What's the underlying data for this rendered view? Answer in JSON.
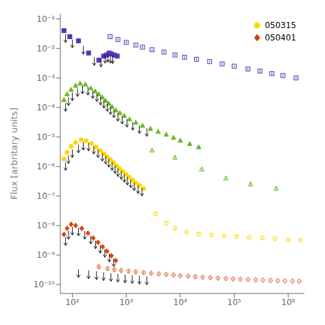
{
  "chart_data": {
    "type": "scatter",
    "ylabel": "Flux [arbritary units]",
    "log": true,
    "grid": false,
    "legend": "upper right",
    "legend_entries": [
      {
        "name": "050315",
        "color": "#FFD700",
        "marker": "circle"
      },
      {
        "name": "050401",
        "color": "#CC4400",
        "marker": "diamond"
      }
    ],
    "xlim": [
      60,
      2000000
    ],
    "xticks": [
      {
        "value": 100,
        "label": "10²"
      },
      {
        "value": 1000,
        "label": "10³"
      },
      {
        "value": 10000,
        "label": "10⁴"
      },
      {
        "value": 100000,
        "label": "10⁵"
      },
      {
        "value": 1000000,
        "label": "10⁶"
      }
    ],
    "ylim": [
      5e-11,
      0.15
    ],
    "yticks": [
      {
        "value": 1e-10,
        "label": "10⁻¹⁰"
      },
      {
        "value": 1e-09,
        "label": "10⁻⁹"
      },
      {
        "value": 1e-08,
        "label": "10⁻⁸"
      },
      {
        "value": 1e-07,
        "label": "10⁻⁷"
      },
      {
        "value": 1e-06,
        "label": "10⁻⁶"
      },
      {
        "value": 1e-05,
        "label": "10⁻⁵"
      },
      {
        "value": 0.0001,
        "label": "10⁻⁴"
      },
      {
        "value": 0.001,
        "label": "10⁻³"
      },
      {
        "value": 0.01,
        "label": "10⁻²"
      },
      {
        "value": 0.1,
        "label": "10⁻¹"
      }
    ],
    "series": [
      {
        "color": "#DD4411",
        "marker": "diamond-open",
        "x": [
          310,
          450,
          600,
          800,
          1100,
          1500,
          2100,
          2900,
          4000,
          5500,
          7500,
          10000,
          14000,
          19000,
          26000,
          36000,
          50000,
          70000,
          95000,
          130000,
          180000,
          250000,
          340000,
          470000,
          640000,
          870000,
          1200000,
          1600000
        ],
        "values": [
          4e-10,
          3.5e-10,
          3.2e-10,
          3e-10,
          2.85e-10,
          2.7e-10,
          2.55e-10,
          2.42e-10,
          2.3e-10,
          2.2e-10,
          2.1e-10,
          2e-10,
          1.92e-10,
          1.85e-10,
          1.78e-10,
          1.72e-10,
          1.66e-10,
          1.61e-10,
          1.56e-10,
          1.52e-10,
          1.48e-10,
          1.44e-10,
          1.41e-10,
          1.38e-10,
          1.35e-10,
          1.33e-10,
          1.3e-10,
          1.28e-10
        ],
        "yerr_lo": [
          5e-11,
          4e-11,
          3.5e-11,
          3e-11,
          2.8e-11,
          2.5e-11,
          2.3e-11,
          2.1e-11,
          2e-11,
          1.8e-11,
          1.7e-11,
          1.6e-11,
          1.5e-11,
          1.4e-11,
          1.3e-11,
          1.2e-11,
          1.1e-11,
          1e-11,
          9e-12,
          8e-12,
          7e-12,
          6e-12,
          6e-12,
          5e-12,
          5e-12,
          4e-12,
          4e-12,
          4e-12
        ],
        "yerr_hi": [
          5e-11,
          4e-11,
          3.5e-11,
          3e-11,
          2.8e-11,
          2.5e-11,
          2.3e-11,
          2.1e-11,
          2e-11,
          1.8e-11,
          1.7e-11,
          1.6e-11,
          1.5e-11,
          1.4e-11,
          1.3e-11,
          1.2e-11,
          1.1e-11,
          1e-11,
          9e-12,
          8e-12,
          7e-12,
          6e-12,
          6e-12,
          5e-12,
          5e-12,
          4e-12,
          4e-12,
          4e-12
        ],
        "upper_limits_x": [
          130,
          200,
          280,
          380,
          520,
          700,
          950,
          1290,
          1750,
          2400
        ],
        "upper_limits_y": [
          3.3e-10,
          3e-10,
          2.8e-10,
          2.6e-10,
          2.45e-10,
          2.3e-10,
          2.18e-10,
          2.07e-10,
          1.97e-10,
          1.88e-10
        ]
      },
      {
        "color": "#FFD700",
        "marker": "circle-open",
        "x": [
          3500,
          5500,
          8000,
          13000,
          22000,
          38000,
          65000,
          110000,
          190000,
          330000,
          570000,
          1000000,
          1700000
        ],
        "values": [
          2.5e-08,
          1.2e-08,
          8e-09,
          6e-09,
          5.2e-09,
          4.8e-09,
          4.5e-09,
          4.2e-09,
          4e-09,
          3.8e-09,
          3.6e-09,
          3.3e-09,
          3.2e-09
        ],
        "yerr_lo": [
          4e-09,
          2e-09,
          1.2e-09,
          9e-10,
          7e-10,
          6e-10,
          5.5e-10,
          5e-10,
          4.5e-10,
          4.5e-10,
          4e-10,
          4e-10,
          3.5e-10
        ],
        "yerr_hi": [
          4e-09,
          2e-09,
          1.2e-09,
          9e-10,
          7e-10,
          6e-10,
          5.5e-10,
          5e-10,
          4.5e-10,
          4.5e-10,
          4e-10,
          4e-10,
          3.5e-10
        ]
      },
      {
        "color": "#66BB22",
        "marker": "triangle-open",
        "x": [
          3000,
          8000,
          25000,
          70000,
          200000,
          600000
        ],
        "values": [
          3.5e-06,
          2e-06,
          8e-07,
          4e-07,
          2.5e-07,
          1.8e-07
        ],
        "yerr_lo": [
          5e-07,
          3e-07,
          1.2e-07,
          6e-08,
          4e-08,
          3e-08
        ],
        "yerr_hi": [
          5e-07,
          3e-07,
          1.2e-07,
          6e-08,
          4e-08,
          3e-08
        ]
      },
      {
        "color": "#5533BB",
        "marker": "square-open",
        "x": [
          500,
          700,
          1000,
          1500,
          2000,
          3000,
          5000,
          8000,
          12000,
          20000,
          35000,
          60000,
          100000,
          180000,
          300000,
          500000,
          800000,
          1400000
        ],
        "values": [
          0.025,
          0.02,
          0.016,
          0.013,
          0.011,
          0.009,
          0.0075,
          0.006,
          0.005,
          0.0043,
          0.0036,
          0.003,
          0.0025,
          0.002,
          0.0017,
          0.0014,
          0.0012,
          0.001
        ],
        "yerr_lo": [
          0.002,
          0.002,
          0.0015,
          0.001,
          0.001,
          0.0008,
          0.0007,
          0.0006,
          0.0005,
          0.0004,
          0.0003,
          0.0003,
          0.0002,
          0.0002,
          0.0002,
          0.00015,
          0.00012,
          0.0001
        ],
        "yerr_hi": [
          0.002,
          0.002,
          0.0015,
          0.001,
          0.001,
          0.0008,
          0.0007,
          0.0006,
          0.0005,
          0.0004,
          0.0003,
          0.0003,
          0.0002,
          0.0002,
          0.0002,
          0.00015,
          0.00012,
          0.0001
        ]
      },
      {
        "color": "#DD4411",
        "marker": "diamond",
        "x": [
          70,
          80,
          95,
          115,
          150,
          195,
          245,
          300,
          365,
          440,
          530,
          640
        ],
        "values": [
          5e-09,
          8e-09,
          1.1e-08,
          1e-08,
          8e-09,
          5.5e-09,
          3.8e-09,
          2.7e-09,
          1.9e-09,
          1.35e-09,
          9.5e-10,
          6.5e-10
        ],
        "yerr_lo": [
          8e-10,
          1.2e-09,
          1.6e-09,
          1.5e-09,
          1.2e-09,
          8e-10,
          5.5e-10,
          4e-10,
          2.8e-10,
          2e-10,
          1.4e-10,
          1e-10
        ],
        "yerr_hi": [
          8e-10,
          1.2e-09,
          1.6e-09,
          1.5e-09,
          1.2e-09,
          8e-10,
          5.5e-10,
          4e-10,
          2.8e-10,
          2e-10,
          1.4e-10,
          1e-10
        ],
        "upper_limits_x": [
          75,
          85,
          100,
          130,
          170,
          220,
          270,
          330,
          400,
          485,
          585
        ],
        "upper_limits_y": [
          4e-09,
          6.5e-09,
          9e-09,
          8.5e-09,
          6.5e-09,
          4.5e-09,
          3.1e-09,
          2.2e-09,
          1.6e-09,
          1.1e-09,
          7.8e-10
        ]
      },
      {
        "color": "#FFD700",
        "marker": "circle",
        "x": [
          70,
          80,
          95,
          115,
          145,
          180,
          225,
          275,
          330,
          385,
          445,
          510,
          580,
          660,
          750,
          860,
          980,
          1120,
          1300,
          1500,
          1750,
          2100
        ],
        "values": [
          1.8e-06,
          3e-06,
          4.8e-06,
          6.5e-06,
          8e-06,
          7.5e-06,
          6e-06,
          4.5e-06,
          3.5e-06,
          2.7e-06,
          2.1e-06,
          1.7e-06,
          1.35e-06,
          1.05e-06,
          8.5e-07,
          6.8e-07,
          5.5e-07,
          4.4e-07,
          3.5e-07,
          2.8e-07,
          2.3e-07,
          1.8e-07
        ],
        "yerr_lo": [
          3e-07,
          5e-07,
          8e-07,
          1e-06,
          1.2e-06,
          1.1e-06,
          9e-07,
          7e-07,
          5.5e-07,
          4.5e-07,
          3.5e-07,
          2.8e-07,
          2.2e-07,
          1.7e-07,
          1.4e-07,
          1.1e-07,
          9e-08,
          7e-08,
          5.5e-08,
          4.5e-08,
          3.5e-08,
          2.8e-08
        ],
        "yerr_hi": [
          3e-07,
          5e-07,
          8e-07,
          1e-06,
          1.2e-06,
          1.1e-06,
          9e-07,
          7e-07,
          5.5e-07,
          4.5e-07,
          3.5e-07,
          2.8e-07,
          2.2e-07,
          1.7e-07,
          1.4e-07,
          1.1e-07,
          9e-08,
          7e-08,
          5.5e-08,
          4.5e-08,
          3.5e-08,
          2.8e-08
        ],
        "upper_limits_x": [
          75,
          85,
          100,
          130,
          160,
          200,
          250,
          300,
          360,
          415,
          475,
          545,
          620,
          700,
          805,
          920,
          1050,
          1210,
          1400,
          1650,
          1950
        ],
        "upper_limits_y": [
          1.4e-06,
          2.4e-06,
          3.8e-06,
          5.5e-06,
          6.8e-06,
          6.4e-06,
          5e-06,
          3.8e-06,
          2.9e-06,
          2.3e-06,
          1.8e-06,
          1.4e-06,
          1.1e-06,
          8.7e-07,
          7e-07,
          5.6e-07,
          4.5e-07,
          3.6e-07,
          2.9e-07,
          2.3e-07,
          1.9e-07
        ]
      },
      {
        "color": "#66BB22",
        "marker": "triangle",
        "x": [
          70,
          80,
          95,
          115,
          140,
          175,
          220,
          265,
          310,
          360,
          415,
          475,
          545,
          640,
          760,
          920,
          1150,
          1500,
          2000,
          2800,
          3900,
          5500,
          7500,
          10000,
          15000,
          22000
        ],
        "values": [
          0.00018,
          0.00028,
          0.0004,
          0.00055,
          0.00065,
          0.0006,
          0.00045,
          0.00035,
          0.00028,
          0.00022,
          0.00017,
          0.000135,
          0.000105,
          8e-05,
          6.5e-05,
          5.2e-05,
          4e-05,
          3.1e-05,
          2.4e-05,
          1.9e-05,
          1.5e-05,
          1.2e-05,
          9.5e-06,
          7.5e-06,
          5.8e-06,
          4.5e-06
        ],
        "yerr_lo": [
          2e-05,
          3e-05,
          4e-05,
          5e-05,
          6e-05,
          5e-05,
          4e-05,
          3e-05,
          2.5e-05,
          2e-05,
          1.5e-05,
          1.2e-05,
          9e-06,
          7e-06,
          5.5e-06,
          4.5e-06,
          3.5e-06,
          2.7e-06,
          2e-06,
          1.6e-06,
          1.3e-06,
          1e-06,
          8e-07,
          6.5e-07,
          5e-07,
          4e-07
        ],
        "yerr_hi": [
          2e-05,
          3e-05,
          4e-05,
          5e-05,
          6e-05,
          5e-05,
          4e-05,
          3e-05,
          2.5e-05,
          2e-05,
          1.5e-05,
          1.2e-05,
          9e-06,
          7e-06,
          5.5e-06,
          4.5e-06,
          3.5e-06,
          2.7e-06,
          2e-06,
          1.6e-06,
          1.3e-06,
          1e-06,
          8e-07,
          6.5e-07,
          5e-07,
          4e-07
        ],
        "upper_limits_x": [
          75,
          85,
          100,
          125,
          155,
          195,
          240,
          285,
          335,
          385,
          445,
          510,
          590,
          700,
          840,
          1030,
          1320,
          1750,
          2400
        ],
        "upper_limits_y": [
          0.00014,
          0.00022,
          0.00032,
          0.00045,
          0.00055,
          0.0005,
          0.00038,
          0.0003,
          0.00023,
          0.00018,
          0.00014,
          0.00011,
          8.5e-05,
          6.5e-05,
          5.2e-05,
          4.1e-05,
          3.2e-05,
          2.5e-05,
          2e-05
        ]
      },
      {
        "color": "#5533BB",
        "marker": "square",
        "x": [
          70,
          90,
          130,
          200,
          310,
          380,
          430,
          480,
          530,
          600,
          680
        ],
        "values": [
          0.04,
          0.025,
          0.018,
          0.007,
          0.004,
          0.0055,
          0.006,
          0.007,
          0.0065,
          0.006,
          0.0055
        ],
        "yerr_lo": [
          0.006,
          0.004,
          0.003,
          0.001,
          0.0007,
          0.001,
          0.001,
          0.001,
          0.001,
          0.001,
          0.001
        ],
        "yerr_hi": [
          0.006,
          0.004,
          0.003,
          0.001,
          0.0007,
          0.001,
          0.001,
          0.001,
          0.001,
          0.001,
          0.001
        ],
        "upper_limits_x": [
          75,
          100,
          160,
          255,
          340,
          405,
          455,
          510,
          560
        ],
        "upper_limits_y": [
          0.03,
          0.02,
          0.012,
          0.005,
          0.0045,
          0.006,
          0.0065,
          0.006,
          0.0058
        ]
      }
    ]
  }
}
